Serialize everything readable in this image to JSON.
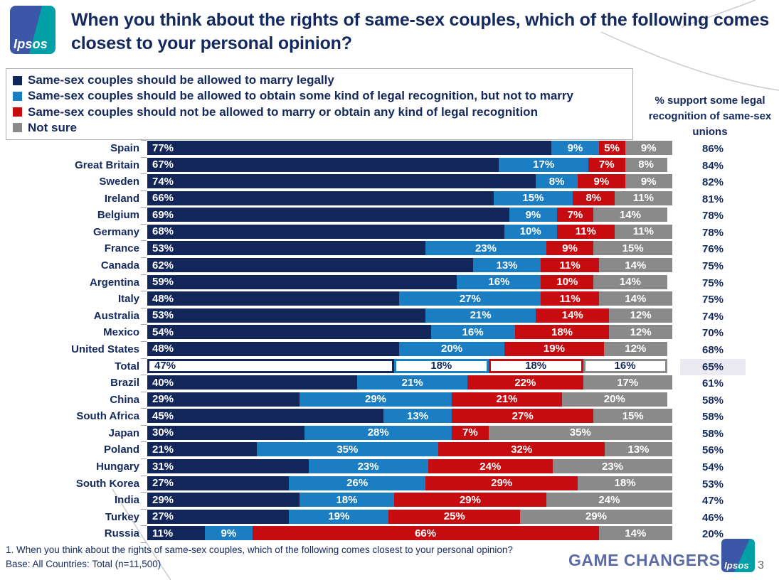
{
  "header": {
    "title": "When you think about the rights of same-sex couples, which of the following comes closest to your personal opinion?",
    "logo_text": "Ipsos"
  },
  "legend": {
    "items": [
      {
        "key": "marry",
        "label": "Same-sex couples should be allowed to marry legally",
        "color": "#12265a"
      },
      {
        "key": "recognition",
        "label": "Same-sex couples should be allowed to obtain some kind of legal recognition, but not to marry",
        "color": "#1b7dc2"
      },
      {
        "key": "oppose",
        "label": "Same-sex couples should not be allowed to marry or obtain any kind of legal recognition",
        "color": "#c60c10"
      },
      {
        "key": "not-sure",
        "label": "Not sure",
        "color": "#8a8a8a"
      }
    ]
  },
  "right_column": {
    "header": "% support some legal recognition of same-sex unions"
  },
  "chart_data": {
    "type": "bar",
    "orientation": "horizontal",
    "stacked": true,
    "xlim": [
      0,
      100
    ],
    "value_suffix": "%",
    "series_names": [
      "Same-sex couples should be allowed to marry legally",
      "Same-sex couples should be allowed to obtain some kind of legal recognition, but not to marry",
      "Same-sex couples should not be allowed to marry or obtain any kind of legal recognition",
      "Not sure"
    ],
    "rows": [
      {
        "country": "Spain",
        "values": [
          77,
          9,
          5,
          9
        ],
        "support": "86%"
      },
      {
        "country": "Great Britain",
        "values": [
          67,
          17,
          7,
          8
        ],
        "support": "84%"
      },
      {
        "country": "Sweden",
        "values": [
          74,
          8,
          9,
          9
        ],
        "support": "82%"
      },
      {
        "country": "Ireland",
        "values": [
          66,
          15,
          8,
          11
        ],
        "support": "81%"
      },
      {
        "country": "Belgium",
        "values": [
          69,
          9,
          7,
          14
        ],
        "support": "78%"
      },
      {
        "country": "Germany",
        "values": [
          68,
          10,
          11,
          11
        ],
        "support": "78%"
      },
      {
        "country": "France",
        "values": [
          53,
          23,
          9,
          15
        ],
        "support": "76%"
      },
      {
        "country": "Canada",
        "values": [
          62,
          13,
          11,
          14
        ],
        "support": "75%"
      },
      {
        "country": "Argentina",
        "values": [
          59,
          16,
          10,
          14
        ],
        "support": "75%"
      },
      {
        "country": "Italy",
        "values": [
          48,
          27,
          11,
          14
        ],
        "support": "75%"
      },
      {
        "country": "Australia",
        "values": [
          53,
          21,
          14,
          12
        ],
        "support": "74%"
      },
      {
        "country": "Mexico",
        "values": [
          54,
          16,
          18,
          12
        ],
        "support": "70%"
      },
      {
        "country": "United States",
        "values": [
          48,
          20,
          19,
          12
        ],
        "support": "68%"
      },
      {
        "country": "Total",
        "values": [
          47,
          18,
          18,
          16
        ],
        "support": "65%",
        "highlight": true
      },
      {
        "country": "Brazil",
        "values": [
          40,
          21,
          22,
          17
        ],
        "support": "61%"
      },
      {
        "country": "China",
        "values": [
          29,
          29,
          21,
          20
        ],
        "support": "58%"
      },
      {
        "country": "South Africa",
        "values": [
          45,
          13,
          27,
          15
        ],
        "support": "58%"
      },
      {
        "country": "Japan",
        "values": [
          30,
          28,
          7,
          35
        ],
        "support": "58%"
      },
      {
        "country": "Poland",
        "values": [
          21,
          35,
          32,
          13
        ],
        "support": "56%"
      },
      {
        "country": "Hungary",
        "values": [
          31,
          23,
          24,
          23
        ],
        "support": "54%"
      },
      {
        "country": "South Korea",
        "values": [
          27,
          26,
          29,
          18
        ],
        "support": "53%"
      },
      {
        "country": "India",
        "values": [
          29,
          18,
          29,
          24
        ],
        "support": "47%"
      },
      {
        "country": "Turkey",
        "values": [
          27,
          19,
          25,
          29
        ],
        "support": "46%"
      },
      {
        "country": "Russia",
        "values": [
          11,
          9,
          66,
          14
        ],
        "support": "20%"
      }
    ]
  },
  "footer": {
    "note1": "1. When you think about the rights of same-sex couples, which of the following comes closest to your personal opinion?",
    "note2": "Base: All Countries: Total (n=11,500)",
    "brand": "GAME CHANGERS",
    "logo_text": "Ipsos",
    "page": "3"
  },
  "colors": {
    "navy": "#12265a",
    "blue": "#1b7dc2",
    "red": "#c60c10",
    "gray": "#8a8a8a",
    "text_navy": "#14295e",
    "brand_blue": "#5c6ba6",
    "highlight_bg": "#eceaf1",
    "logo_blue": "#3c57a8",
    "logo_teal": "#00a0a6"
  }
}
